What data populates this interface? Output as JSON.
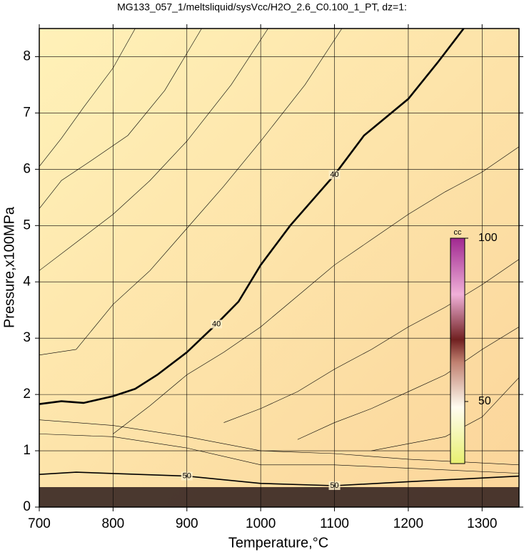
{
  "chart_data": {
    "type": "contour",
    "title": "MG133_057_1/meltsliquid/sysVcc/H2O_2.6_C0.100_1_PT, dz=1:",
    "x_label": "Temperature,°C",
    "y_label": "Pressure,x100MPa",
    "xlim": [
      700,
      1350
    ],
    "xticks": [
      700,
      800,
      900,
      1000,
      1100,
      1200,
      1300
    ],
    "ylim": [
      0,
      8.5
    ],
    "yticks": [
      0,
      1,
      2,
      3,
      4,
      5,
      6,
      7,
      8
    ],
    "grid": true,
    "contours": [
      {
        "label": "40",
        "bold": true,
        "x": [
          700,
          730,
          760,
          800,
          830,
          860,
          900,
          940,
          970,
          1000,
          1040,
          1080,
          1100,
          1140,
          1200,
          1240,
          1275
        ],
        "y": [
          1.83,
          1.88,
          1.85,
          1.97,
          2.1,
          2.35,
          2.75,
          3.25,
          3.65,
          4.3,
          5.0,
          5.6,
          5.9,
          6.6,
          7.25,
          7.9,
          8.5
        ]
      },
      {
        "label": "50",
        "bold": true,
        "x": [
          700,
          750,
          900,
          1000,
          1100,
          1200,
          1350
        ],
        "y": [
          0.58,
          0.62,
          0.55,
          0.42,
          0.38,
          0.45,
          0.55
        ]
      },
      {
        "x": [
          700,
          730,
          760,
          800,
          830
        ],
        "y": [
          6.05,
          6.55,
          7.1,
          7.8,
          8.5
        ]
      },
      {
        "x": [
          700,
          730,
          770,
          820,
          870,
          920
        ],
        "y": [
          5.3,
          5.8,
          6.15,
          6.6,
          7.4,
          8.5
        ]
      },
      {
        "x": [
          700,
          750,
          800,
          850,
          900,
          960,
          1010
        ],
        "y": [
          4.2,
          4.7,
          5.2,
          5.8,
          6.5,
          7.5,
          8.5
        ]
      },
      {
        "x": [
          700,
          750,
          800,
          850,
          900,
          950,
          1000,
          1060,
          1110
        ],
        "y": [
          2.7,
          2.8,
          3.6,
          4.2,
          4.95,
          5.7,
          6.5,
          7.5,
          8.5
        ]
      },
      {
        "x": [
          800,
          850,
          900,
          950,
          1000,
          1050,
          1100,
          1150,
          1200,
          1250,
          1300,
          1350
        ],
        "y": [
          1.3,
          1.8,
          2.35,
          2.75,
          3.2,
          3.75,
          4.3,
          4.75,
          5.2,
          5.6,
          5.95,
          6.4
        ]
      },
      {
        "x": [
          950,
          1000,
          1050,
          1100,
          1150,
          1200,
          1250,
          1300,
          1350
        ],
        "y": [
          1.5,
          1.75,
          2.05,
          2.45,
          2.8,
          3.2,
          3.55,
          3.95,
          4.4
        ]
      },
      {
        "x": [
          1050,
          1100,
          1150,
          1200,
          1250,
          1300,
          1350
        ],
        "y": [
          1.2,
          1.5,
          1.75,
          2.05,
          2.35,
          2.8,
          3.2
        ]
      },
      {
        "x": [
          1150,
          1250,
          1300,
          1350
        ],
        "y": [
          1.0,
          1.25,
          1.6,
          2.3
        ]
      },
      {
        "x": [
          700,
          800,
          900,
          1000,
          1100,
          1200,
          1350
        ],
        "y": [
          1.55,
          1.45,
          1.25,
          1.0,
          0.95,
          0.85,
          0.75
        ]
      },
      {
        "x": [
          700,
          800,
          900,
          1000,
          1100,
          1350
        ],
        "y": [
          1.3,
          1.25,
          1.05,
          0.75,
          0.75,
          0.6
        ]
      }
    ],
    "colorbar": {
      "label": "cc",
      "lim": [
        31,
        100
      ],
      "ticks": [
        50,
        100
      ]
    }
  }
}
